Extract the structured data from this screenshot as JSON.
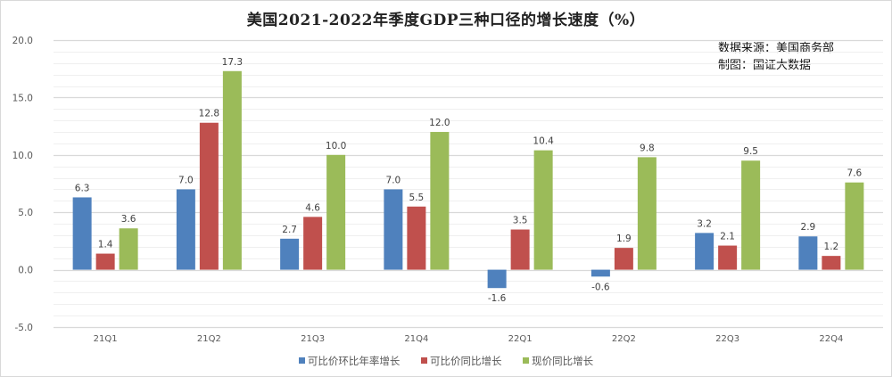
{
  "title": "美国2021-2022年季度GDP三种口径的增长速度（%）",
  "source_lines": [
    "数据来源：美国商务部",
    "制图：国证大数据"
  ],
  "chart_data": {
    "type": "bar",
    "title": "美国2021-2022年季度GDP三种口径的增长速度（%）",
    "xlabel": "",
    "ylabel": "",
    "categories": [
      "21Q1",
      "21Q2",
      "21Q3",
      "21Q4",
      "22Q1",
      "22Q2",
      "22Q3",
      "22Q4"
    ],
    "series": [
      {
        "name": "可比价环比年率增长",
        "color": "#4f81bd",
        "values": [
          6.3,
          7.0,
          2.7,
          7.0,
          -1.6,
          -0.6,
          3.2,
          2.9
        ]
      },
      {
        "name": "可比价同比增长",
        "color": "#c0504d",
        "values": [
          1.4,
          12.8,
          4.6,
          5.5,
          3.5,
          1.9,
          2.1,
          1.2
        ]
      },
      {
        "name": "现价同比增长",
        "color": "#9bbb59",
        "values": [
          3.6,
          17.3,
          10.0,
          12.0,
          10.4,
          9.8,
          9.5,
          7.6
        ]
      }
    ],
    "ylim": [
      -5.0,
      20.0
    ],
    "yticks": [
      -5.0,
      0.0,
      5.0,
      10.0,
      15.0,
      20.0
    ],
    "ytick_labels": [
      "-5.0",
      "0.0",
      "5.0",
      "10.0",
      "15.0",
      "20.0"
    ],
    "minor_grid_step": 1.0,
    "grid": true,
    "data_labels": true,
    "legend_position": "bottom"
  }
}
